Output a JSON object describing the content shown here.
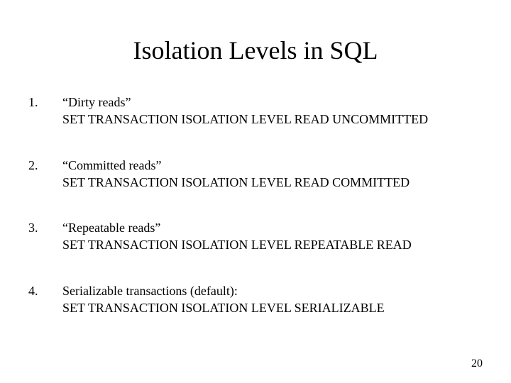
{
  "title": "Isolation Levels in SQL",
  "items": [
    {
      "number": "1.",
      "label": "“Dirty reads”",
      "command": "SET TRANSACTION ISOLATION LEVEL READ UNCOMMITTED"
    },
    {
      "number": "2.",
      "label": "“Committed reads”",
      "command": "SET TRANSACTION ISOLATION LEVEL READ COMMITTED"
    },
    {
      "number": "3.",
      "label": "“Repeatable reads”",
      "command": "SET TRANSACTION ISOLATION LEVEL REPEATABLE READ"
    },
    {
      "number": "4.",
      "label": "Serializable transactions (default):",
      "command": "SET TRANSACTION ISOLATION LEVEL SERIALIZABLE"
    }
  ],
  "page_number": "20",
  "style": {
    "background_color": "#ffffff",
    "text_color": "#000000",
    "font_family": "Times New Roman",
    "title_fontsize": 36,
    "body_fontsize": 18,
    "page_number_fontsize": 16
  }
}
